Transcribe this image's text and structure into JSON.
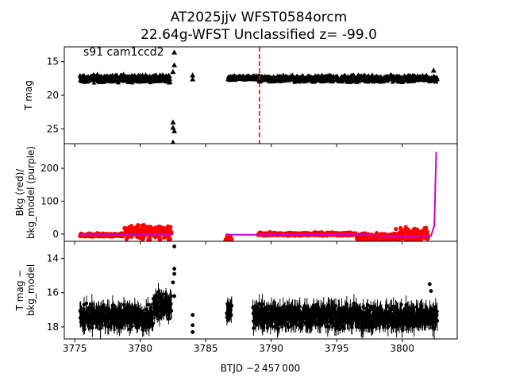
{
  "title_line1": "AT2025jjv  WFST0584orcm",
  "title_line2": "22.64g-WFST Unclassified z= -99.0",
  "annotation": "s91 cam1ccd2",
  "x_label": "BTJD −2 457 000",
  "x_ticks": [
    "3775",
    "3780",
    "3785",
    "3790",
    "3795",
    "3800"
  ],
  "chart_data": [
    {
      "type": "scatter",
      "ylabel": "T mag",
      "xlim": [
        3774.2,
        3804.2
      ],
      "ylim": [
        27.2,
        12.8
      ],
      "inverted_y": true,
      "y_ticks": [
        15,
        20,
        25
      ],
      "marker": "triangle",
      "color": "#000000",
      "vline": {
        "x": 3789.1,
        "color": "#ff0000",
        "style": "dashed"
      },
      "segments": [
        {
          "x_start": 3775.4,
          "x_end": 3782.3,
          "y_center": 17.5,
          "y_spread": 0.7
        },
        {
          "x_start": 3786.7,
          "x_end": 3788.9,
          "y_center": 17.4,
          "y_spread": 0.4
        },
        {
          "x_start": 3789.0,
          "x_end": 3802.7,
          "y_center": 17.5,
          "y_spread": 0.6
        }
      ],
      "points": [
        {
          "x": 3782.6,
          "y": 13.6
        },
        {
          "x": 3782.6,
          "y": 15.5
        },
        {
          "x": 3782.5,
          "y": 16.5
        },
        {
          "x": 3784.0,
          "y": 17.0
        },
        {
          "x": 3784.0,
          "y": 17.6
        },
        {
          "x": 3782.5,
          "y": 24.0
        },
        {
          "x": 3782.5,
          "y": 24.8
        },
        {
          "x": 3782.6,
          "y": 25.3
        },
        {
          "x": 3782.5,
          "y": 27.0
        },
        {
          "x": 3802.4,
          "y": 16.3
        }
      ]
    },
    {
      "type": "scatter",
      "ylabel": "Bkg (red)/\nbkg_model (purple)",
      "xlim": [
        3774.2,
        3804.2
      ],
      "ylim": [
        -22,
        275
      ],
      "y_ticks": [
        0,
        100,
        200
      ],
      "colors": {
        "bkg": "#ff0000",
        "model": "#cc00cc"
      },
      "bkg_segments": [
        {
          "x_start": 3775.4,
          "x_end": 3778.8,
          "y_center": -3,
          "y_spread": 6
        },
        {
          "x_start": 3778.8,
          "x_end": 3782.4,
          "y_center": 5,
          "y_spread": 25
        },
        {
          "x_start": 3786.5,
          "x_end": 3787.0,
          "y_center": -15,
          "y_spread": 12
        },
        {
          "x_start": 3789.0,
          "x_end": 3796.5,
          "y_center": 0,
          "y_spread": 6
        },
        {
          "x_start": 3796.5,
          "x_end": 3799.5,
          "y_center": -10,
          "y_spread": 14
        },
        {
          "x_start": 3799.5,
          "x_end": 3802.0,
          "y_center": -3,
          "y_spread": 28
        }
      ],
      "model_curve": [
        [
          3775.4,
          -2
        ],
        [
          3782.4,
          -2
        ],
        [
          3786.5,
          -2
        ],
        [
          3788.9,
          -2
        ],
        [
          3789.0,
          0
        ],
        [
          3796.5,
          -1
        ],
        [
          3799.5,
          -8
        ],
        [
          3802.2,
          -5
        ],
        [
          3802.45,
          25
        ],
        [
          3802.6,
          250
        ]
      ]
    },
    {
      "type": "scatter",
      "ylabel": "T mag −\nbkg_model",
      "xlim": [
        3774.2,
        3804.2
      ],
      "ylim": [
        18.7,
        13.0
      ],
      "inverted_y": true,
      "y_ticks": [
        14,
        16,
        18
      ],
      "marker": "circle",
      "color": "#000000",
      "segments": [
        {
          "x_start": 3775.4,
          "x_end": 3781.0,
          "y_center": 17.4,
          "y_spread": 0.8
        },
        {
          "x_start": 3781.0,
          "x_end": 3782.4,
          "y_center": 16.8,
          "y_spread": 0.9
        },
        {
          "x_start": 3786.6,
          "x_end": 3787.0,
          "y_center": 17.0,
          "y_spread": 0.6
        },
        {
          "x_start": 3788.6,
          "x_end": 3802.7,
          "y_center": 17.4,
          "y_spread": 0.8
        }
      ],
      "points": [
        {
          "x": 3782.6,
          "y": 13.3
        },
        {
          "x": 3782.6,
          "y": 14.6
        },
        {
          "x": 3782.6,
          "y": 14.9
        },
        {
          "x": 3782.5,
          "y": 15.4
        },
        {
          "x": 3782.6,
          "y": 16.2
        },
        {
          "x": 3784.0,
          "y": 17.3
        },
        {
          "x": 3784.0,
          "y": 17.9
        },
        {
          "x": 3784.0,
          "y": 18.3
        },
        {
          "x": 3802.1,
          "y": 15.5
        },
        {
          "x": 3802.2,
          "y": 15.9
        }
      ]
    }
  ]
}
